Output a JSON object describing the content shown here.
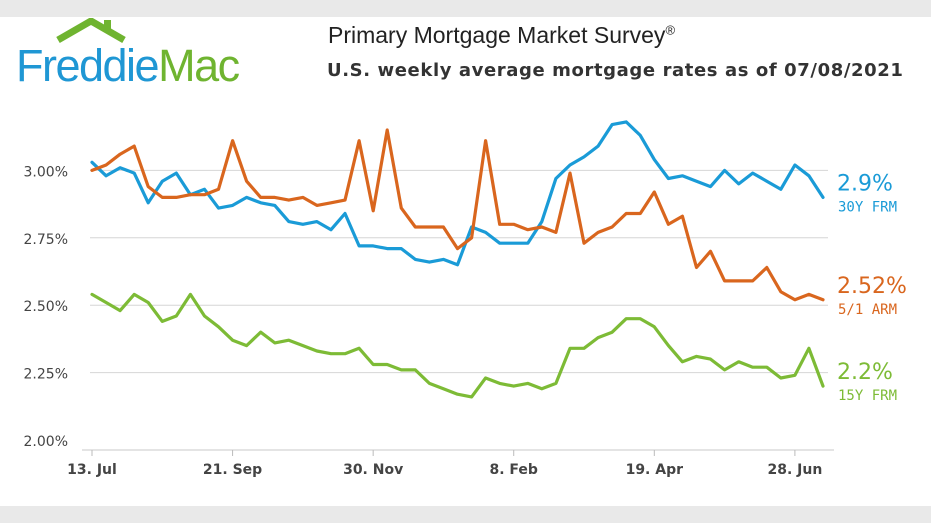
{
  "logo": {
    "part1": "Freddie",
    "part2": "Mac",
    "brand_blue": "#1f97d4",
    "brand_green": "#6fb430"
  },
  "header": {
    "title": "Primary Mortgage Market Survey",
    "title_mark": "®",
    "subtitle": "U.S. weekly average mortgage rates as of 07/08/2021"
  },
  "chart_data": {
    "type": "line",
    "ylim": [
      2.0,
      3.25
    ],
    "yticks": [
      {
        "value": 2.0,
        "label": "2.00%"
      },
      {
        "value": 2.25,
        "label": "2.25%"
      },
      {
        "value": 2.5,
        "label": "2.50%"
      },
      {
        "value": 2.75,
        "label": "2.75%"
      },
      {
        "value": 3.0,
        "label": "3.00%"
      }
    ],
    "x": [
      "2020-07-09",
      "2020-07-16",
      "2020-07-23",
      "2020-07-30",
      "2020-08-06",
      "2020-08-13",
      "2020-08-20",
      "2020-08-27",
      "2020-09-03",
      "2020-09-10",
      "2020-09-17",
      "2020-09-24",
      "2020-10-01",
      "2020-10-08",
      "2020-10-15",
      "2020-10-22",
      "2020-10-29",
      "2020-11-05",
      "2020-11-12",
      "2020-11-19",
      "2020-11-25",
      "2020-12-03",
      "2020-12-10",
      "2020-12-17",
      "2020-12-23",
      "2020-12-30",
      "2021-01-07",
      "2021-01-14",
      "2021-01-21",
      "2021-01-28",
      "2021-02-04",
      "2021-02-11",
      "2021-02-18",
      "2021-02-25",
      "2021-03-04",
      "2021-03-11",
      "2021-03-18",
      "2021-03-25",
      "2021-04-01",
      "2021-04-08",
      "2021-04-15",
      "2021-04-22",
      "2021-04-29",
      "2021-05-06",
      "2021-05-13",
      "2021-05-20",
      "2021-05-27",
      "2021-06-03",
      "2021-06-10",
      "2021-06-17",
      "2021-06-24",
      "2021-07-01",
      "2021-07-08"
    ],
    "xticks": [
      {
        "index": 0,
        "label": "13. Jul"
      },
      {
        "index": 10,
        "label": "21. Sep"
      },
      {
        "index": 20,
        "label": "30. Nov"
      },
      {
        "index": 30,
        "label": "8. Feb"
      },
      {
        "index": 40,
        "label": "19. Apr"
      },
      {
        "index": 50,
        "label": "28. Jun"
      }
    ],
    "series": [
      {
        "name": "30Y FRM",
        "last_label": "2.9%",
        "color": "#1a9bd7",
        "values": [
          3.03,
          2.98,
          3.01,
          2.99,
          2.88,
          2.96,
          2.99,
          2.91,
          2.93,
          2.86,
          2.87,
          2.9,
          2.88,
          2.87,
          2.81,
          2.8,
          2.81,
          2.78,
          2.84,
          2.72,
          2.72,
          2.71,
          2.71,
          2.67,
          2.66,
          2.67,
          2.65,
          2.79,
          2.77,
          2.73,
          2.73,
          2.73,
          2.81,
          2.97,
          3.02,
          3.05,
          3.09,
          3.17,
          3.18,
          3.13,
          3.04,
          2.97,
          2.98,
          2.96,
          2.94,
          3.0,
          2.95,
          2.99,
          2.96,
          2.93,
          3.02,
          2.98,
          2.9
        ]
      },
      {
        "name": "5/1 ARM",
        "last_label": "2.52%",
        "color": "#d9661e",
        "values": [
          3.0,
          3.02,
          3.06,
          3.09,
          2.94,
          2.9,
          2.9,
          2.91,
          2.91,
          2.93,
          3.11,
          2.96,
          2.9,
          2.9,
          2.89,
          2.9,
          2.87,
          2.88,
          2.89,
          3.11,
          2.85,
          3.15,
          2.86,
          2.79,
          2.79,
          2.79,
          2.71,
          2.75,
          3.11,
          2.8,
          2.8,
          2.78,
          2.79,
          2.77,
          2.99,
          2.73,
          2.77,
          2.79,
          2.84,
          2.84,
          2.92,
          2.8,
          2.83,
          2.64,
          2.7,
          2.59,
          2.59,
          2.59,
          2.64,
          2.55,
          2.52,
          2.54,
          2.52
        ]
      },
      {
        "name": "15Y FRM",
        "last_label": "2.2%",
        "color": "#7dbb36",
        "values": [
          2.54,
          2.51,
          2.48,
          2.54,
          2.51,
          2.44,
          2.46,
          2.54,
          2.46,
          2.42,
          2.37,
          2.35,
          2.4,
          2.36,
          2.37,
          2.35,
          2.33,
          2.32,
          2.32,
          2.34,
          2.28,
          2.28,
          2.26,
          2.26,
          2.21,
          2.19,
          2.17,
          2.16,
          2.23,
          2.21,
          2.2,
          2.21,
          2.19,
          2.21,
          2.34,
          2.34,
          2.38,
          2.4,
          2.45,
          2.45,
          2.42,
          2.35,
          2.29,
          2.31,
          2.3,
          2.26,
          2.29,
          2.27,
          2.27,
          2.23,
          2.24,
          2.34,
          2.2
        ]
      }
    ]
  }
}
